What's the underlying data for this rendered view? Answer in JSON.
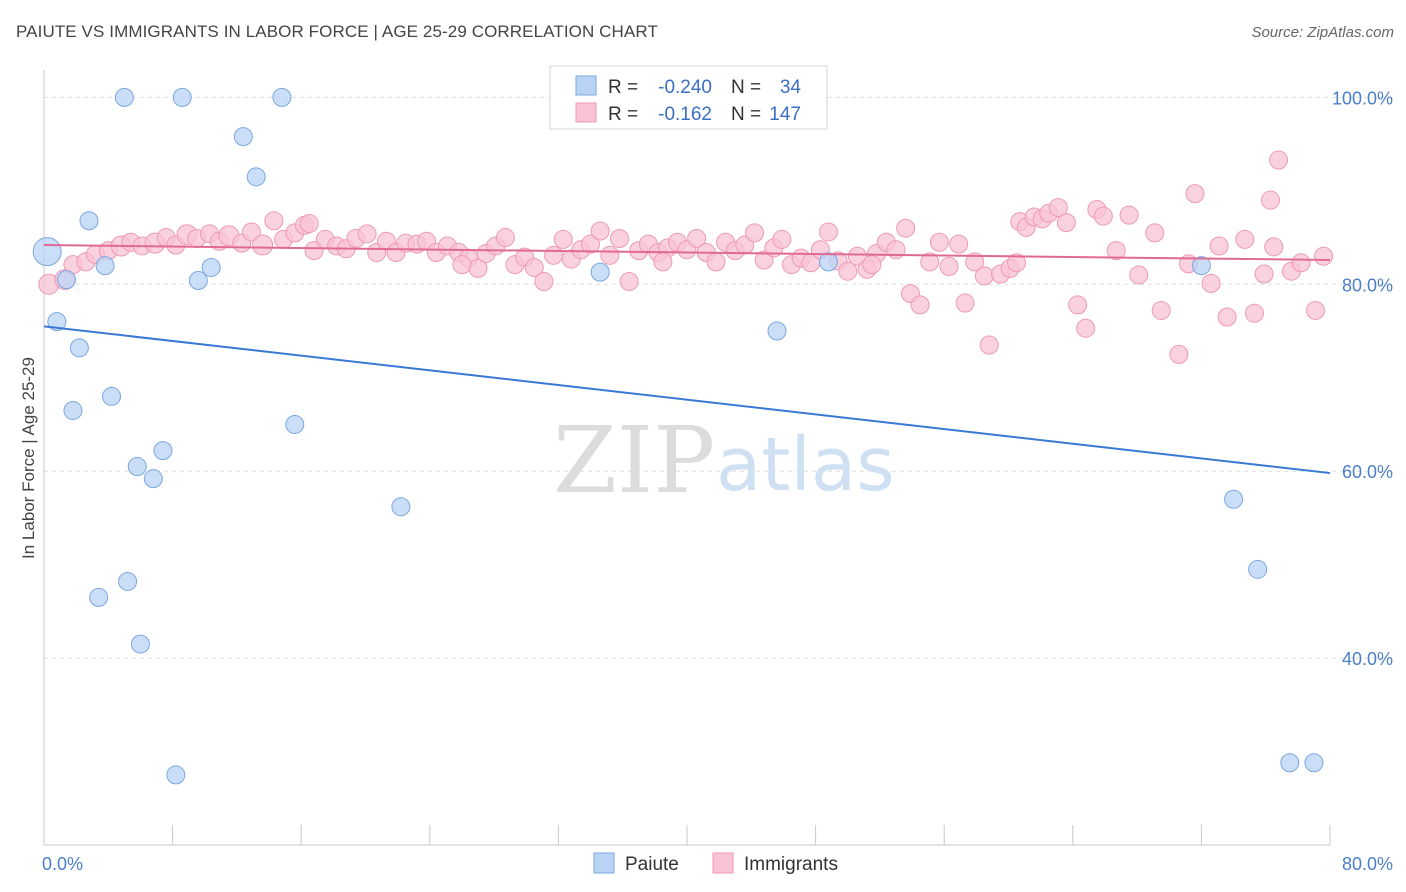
{
  "header": {
    "title": "PAIUTE VS IMMIGRANTS IN LABOR FORCE | AGE 25-29 CORRELATION CHART",
    "source": "Source: ZipAtlas.com"
  },
  "watermark": {
    "zip": "ZIP",
    "atlas": "atlas"
  },
  "colors": {
    "paiute_fill": "#b9d3f5",
    "paiute_stroke": "#7aa7e0",
    "paiute_line": "#3a78d6",
    "immigrants_fill": "#f8c3d4",
    "immigrants_stroke": "#ee99b6",
    "immigrants_line": "#e06a93",
    "tick_text": "#4a7fc8"
  },
  "legend": {
    "rows": [
      {
        "r_label": "R = ",
        "r_value": "-0.240",
        "n_label": "N = ",
        "n_value": "34"
      },
      {
        "r_label": "R = ",
        "r_value": "-0.162",
        "n_label": "N = ",
        "n_value": "147"
      }
    ]
  },
  "chart_data": {
    "type": "scatter",
    "title": "PAIUTE VS IMMIGRANTS IN LABOR FORCE | AGE 25-29 CORRELATION CHART",
    "xlabel": "",
    "ylabel": "In Labor Force | Age 25-29",
    "xlim": [
      0,
      80
    ],
    "ylim": [
      20,
      104
    ],
    "x_ticks": [
      {
        "value": 0,
        "label": "0.0%"
      },
      {
        "value": 80,
        "label": "80.0%"
      }
    ],
    "y_ticks": [
      {
        "value": 100,
        "label": "100.0%"
      },
      {
        "value": 80,
        "label": "80.0%"
      },
      {
        "value": 60,
        "label": "60.0%"
      },
      {
        "value": 40,
        "label": "40.0%"
      }
    ],
    "grid": true,
    "legend_position": "top-center",
    "series": [
      {
        "name": "Paiute",
        "trend": {
          "x": [
            0,
            80
          ],
          "y": [
            75.5,
            59.8
          ]
        },
        "points": [
          [
            0.2,
            83.5,
            14
          ],
          [
            0.8,
            76,
            9
          ],
          [
            1.4,
            80.5,
            9
          ],
          [
            2.2,
            73.2,
            9
          ],
          [
            2.8,
            86.8,
            9
          ],
          [
            1.8,
            66.5,
            9
          ],
          [
            3.8,
            82,
            9
          ],
          [
            4.2,
            68,
            9
          ],
          [
            5,
            100,
            9
          ],
          [
            8.6,
            100,
            9
          ],
          [
            14.8,
            100,
            9
          ],
          [
            12.4,
            95.8,
            9
          ],
          [
            13.2,
            91.5,
            9
          ],
          [
            9.6,
            80.4,
            9
          ],
          [
            10.4,
            81.8,
            9
          ],
          [
            15.6,
            65,
            9
          ],
          [
            7.4,
            62.2,
            9
          ],
          [
            5.8,
            60.5,
            9
          ],
          [
            6.8,
            59.2,
            9
          ],
          [
            3.4,
            46.5,
            9
          ],
          [
            5.2,
            48.2,
            9
          ],
          [
            6,
            41.5,
            9
          ],
          [
            8.2,
            27.5,
            9
          ],
          [
            22.2,
            56.2,
            9
          ],
          [
            34.6,
            81.3,
            9
          ],
          [
            45.6,
            75,
            9
          ],
          [
            48.8,
            82.4,
            9
          ],
          [
            45.8,
            100,
            9
          ],
          [
            72,
            82,
            9
          ],
          [
            74,
            57,
            9
          ],
          [
            75.5,
            49.5,
            9
          ],
          [
            77.5,
            28.8,
            9
          ],
          [
            79,
            28.8,
            9
          ]
        ]
      },
      {
        "name": "Immigrants",
        "trend": {
          "x": [
            0,
            80
          ],
          "y": [
            84.2,
            82.6
          ]
        },
        "points": [
          [
            0.3,
            80,
            10
          ],
          [
            1.3,
            80.5,
            10
          ],
          [
            1.8,
            82.1,
            9
          ],
          [
            2.6,
            82.4,
            9
          ],
          [
            3.2,
            83.2,
            9
          ],
          [
            4,
            83.6,
            9
          ],
          [
            4.8,
            84.1,
            10
          ],
          [
            5.4,
            84.5,
            9
          ],
          [
            6.1,
            84.1,
            9
          ],
          [
            6.9,
            84.4,
            10
          ],
          [
            7.6,
            85,
            9
          ],
          [
            8.2,
            84.2,
            9
          ],
          [
            8.9,
            85.3,
            10
          ],
          [
            9.5,
            84.9,
            9
          ],
          [
            10.3,
            85.4,
            9
          ],
          [
            10.9,
            84.6,
            9
          ],
          [
            11.5,
            85.2,
            10
          ],
          [
            12.3,
            84.4,
            9
          ],
          [
            12.9,
            85.6,
            9
          ],
          [
            13.6,
            84.2,
            10
          ],
          [
            14.3,
            86.8,
            9
          ],
          [
            14.9,
            84.8,
            9
          ],
          [
            15.6,
            85.5,
            9
          ],
          [
            16.2,
            86.3,
            9
          ],
          [
            16.8,
            83.6,
            9
          ],
          [
            17.5,
            84.8,
            9
          ],
          [
            18.2,
            84.1,
            9
          ],
          [
            18.8,
            83.8,
            9
          ],
          [
            19.4,
            84.9,
            9
          ],
          [
            20.1,
            85.4,
            9
          ],
          [
            20.7,
            83.4,
            9
          ],
          [
            21.3,
            84.6,
            9
          ],
          [
            21.9,
            83.4,
            9
          ],
          [
            22.5,
            84.4,
            9
          ],
          [
            23.2,
            84.3,
            9
          ],
          [
            23.8,
            84.6,
            9
          ],
          [
            24.4,
            83.4,
            9
          ],
          [
            25.1,
            84.1,
            9
          ],
          [
            25.8,
            83.4,
            9
          ],
          [
            26.4,
            82.8,
            9
          ],
          [
            27,
            81.7,
            9
          ],
          [
            27.5,
            83.3,
            9
          ],
          [
            28.1,
            84.1,
            9
          ],
          [
            28.7,
            85,
            9
          ],
          [
            29.3,
            82.1,
            9
          ],
          [
            29.9,
            82.9,
            9
          ],
          [
            30.5,
            81.8,
            9
          ],
          [
            31.1,
            80.3,
            9
          ],
          [
            31.7,
            83.1,
            9
          ],
          [
            32.3,
            84.8,
            9
          ],
          [
            32.8,
            82.7,
            9
          ],
          [
            33.4,
            83.7,
            9
          ],
          [
            34,
            84.3,
            9
          ],
          [
            34.6,
            85.7,
            9
          ],
          [
            35.2,
            83.1,
            9
          ],
          [
            35.8,
            84.9,
            9
          ],
          [
            36.4,
            80.3,
            9
          ],
          [
            37,
            83.6,
            9
          ],
          [
            37.6,
            84.3,
            9
          ],
          [
            38.2,
            83.4,
            9
          ],
          [
            38.8,
            83.9,
            9
          ],
          [
            39.4,
            84.5,
            9
          ],
          [
            40,
            83.7,
            9
          ],
          [
            40.6,
            84.9,
            9
          ],
          [
            41.2,
            83.4,
            9
          ],
          [
            41.8,
            82.4,
            9
          ],
          [
            42.4,
            84.5,
            9
          ],
          [
            43,
            83.6,
            9
          ],
          [
            43.6,
            84.2,
            9
          ],
          [
            44.2,
            85.5,
            9
          ],
          [
            44.8,
            82.6,
            9
          ],
          [
            45.4,
            83.9,
            9
          ],
          [
            45.9,
            84.8,
            9
          ],
          [
            46.5,
            82.1,
            9
          ],
          [
            47.1,
            82.8,
            9
          ],
          [
            47.7,
            82.3,
            9
          ],
          [
            48.3,
            83.7,
            9
          ],
          [
            48.8,
            85.6,
            9
          ],
          [
            49.4,
            82.5,
            9
          ],
          [
            50,
            81.4,
            9
          ],
          [
            50.6,
            83,
            9
          ],
          [
            51.2,
            81.6,
            9
          ],
          [
            51.8,
            83.3,
            9
          ],
          [
            52.4,
            84.5,
            9
          ],
          [
            53,
            83.7,
            9
          ],
          [
            53.6,
            86,
            9
          ],
          [
            53.9,
            79,
            9
          ],
          [
            54.5,
            77.8,
            9
          ],
          [
            55.1,
            82.4,
            9
          ],
          [
            55.7,
            84.5,
            9
          ],
          [
            56.3,
            81.9,
            9
          ],
          [
            56.9,
            84.3,
            9
          ],
          [
            57.3,
            78,
            9
          ],
          [
            57.9,
            82.4,
            9
          ],
          [
            58.5,
            80.9,
            9
          ],
          [
            58.8,
            73.5,
            9
          ],
          [
            59.5,
            81.1,
            9
          ],
          [
            60.1,
            81.7,
            9
          ],
          [
            60.7,
            86.7,
            9
          ],
          [
            61.1,
            86.1,
            9
          ],
          [
            61.6,
            87.2,
            9
          ],
          [
            62.1,
            87,
            9
          ],
          [
            62.5,
            87.6,
            9
          ],
          [
            63.1,
            88.2,
            9
          ],
          [
            63.6,
            86.6,
            9
          ],
          [
            64.3,
            77.8,
            9
          ],
          [
            64.8,
            75.3,
            9
          ],
          [
            65.5,
            88,
            9
          ],
          [
            65.9,
            87.3,
            9
          ],
          [
            66.7,
            83.6,
            9
          ],
          [
            67.5,
            87.4,
            9
          ],
          [
            68.1,
            81,
            9
          ],
          [
            69.1,
            85.5,
            9
          ],
          [
            69.5,
            77.2,
            9
          ],
          [
            70.6,
            72.5,
            9
          ],
          [
            71.2,
            82.2,
            9
          ],
          [
            71.6,
            89.7,
            9
          ],
          [
            72.6,
            80.1,
            9
          ],
          [
            73.1,
            84.1,
            9
          ],
          [
            73.6,
            76.5,
            9
          ],
          [
            74.7,
            84.8,
            9
          ],
          [
            75.3,
            76.9,
            9
          ],
          [
            75.9,
            81.1,
            9
          ],
          [
            76.3,
            89,
            9
          ],
          [
            76.8,
            93.3,
            9
          ],
          [
            76.5,
            84,
            9
          ],
          [
            77.6,
            81.4,
            9
          ],
          [
            78.2,
            82.3,
            9
          ],
          [
            79.1,
            77.2,
            9
          ],
          [
            79.6,
            83,
            9
          ],
          [
            16.5,
            86.5,
            9
          ],
          [
            26,
            82.1,
            9
          ],
          [
            38.5,
            82.4,
            9
          ],
          [
            51.5,
            82.1,
            9
          ],
          [
            60.5,
            82.3,
            9
          ]
        ]
      }
    ]
  }
}
